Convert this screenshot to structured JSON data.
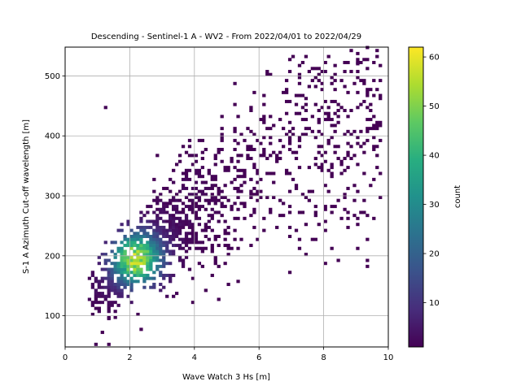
{
  "chart_data": {
    "type": "heatmap",
    "title": "Descending - Sentinel-1 A - WV2 - From 2022/04/01 to 2022/04/29",
    "xlabel": "Wave Watch 3 Hs [m]",
    "ylabel": "S-1 A Azimuth Cut-off wavelength [m]",
    "xlim": [
      0,
      10
    ],
    "ylim": [
      48,
      548
    ],
    "xticks": [
      0,
      2,
      4,
      6,
      8,
      10
    ],
    "yticks": [
      100,
      200,
      300,
      400,
      500
    ],
    "grid": true,
    "colormap": "viridis",
    "colorbar": {
      "label": "count",
      "range": [
        1,
        62
      ],
      "ticks": [
        10,
        20,
        30,
        40,
        50,
        60
      ]
    },
    "bin_size": {
      "x": 0.1,
      "y": 5
    },
    "density_model": {
      "core": {
        "x": 2.2,
        "y": 195,
        "peak_count": 62
      },
      "ridge": [
        {
          "x": 0.8,
          "y": 130
        },
        {
          "x": 2.2,
          "y": 195
        },
        {
          "x": 4.0,
          "y": 280
        },
        {
          "x": 6.0,
          "y": 345
        },
        {
          "x": 8.0,
          "y": 410
        },
        {
          "x": 9.5,
          "y": 440
        }
      ]
    }
  }
}
